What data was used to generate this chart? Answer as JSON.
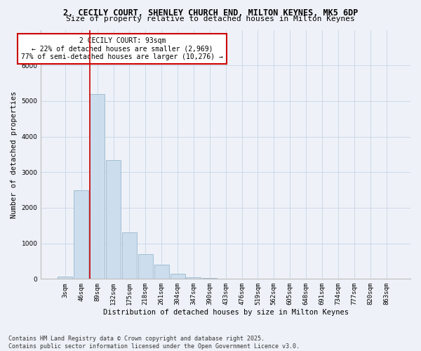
{
  "title_line1": "2, CECILY COURT, SHENLEY CHURCH END, MILTON KEYNES, MK5 6DP",
  "title_line2": "Size of property relative to detached houses in Milton Keynes",
  "xlabel": "Distribution of detached houses by size in Milton Keynes",
  "ylabel": "Number of detached properties",
  "categories": [
    "3sqm",
    "46sqm",
    "89sqm",
    "132sqm",
    "175sqm",
    "218sqm",
    "261sqm",
    "304sqm",
    "347sqm",
    "390sqm",
    "433sqm",
    "476sqm",
    "519sqm",
    "562sqm",
    "605sqm",
    "648sqm",
    "691sqm",
    "734sqm",
    "777sqm",
    "820sqm",
    "863sqm"
  ],
  "values": [
    75,
    2500,
    5200,
    3350,
    1300,
    700,
    400,
    150,
    50,
    20,
    5,
    2,
    1,
    0,
    0,
    0,
    0,
    0,
    0,
    0,
    0
  ],
  "bar_color": "#ccdded",
  "bar_edge_color": "#9ab8cc",
  "vline_color": "#cc0000",
  "annotation_text": "2 CECILY COURT: 93sqm\n← 22% of detached houses are smaller (2,969)\n77% of semi-detached houses are larger (10,276) →",
  "annotation_box_color": "#ffffff",
  "annotation_box_edge": "#cc0000",
  "ylim": [
    0,
    7000
  ],
  "yticks": [
    0,
    1000,
    2000,
    3000,
    4000,
    5000,
    6000
  ],
  "grid_color": "#ccd8e8",
  "background_color": "#eef2f8",
  "footnote": "Contains HM Land Registry data © Crown copyright and database right 2025.\nContains public sector information licensed under the Open Government Licence v3.0.",
  "title_fontsize": 8.5,
  "subtitle_fontsize": 8,
  "axis_label_fontsize": 7.5,
  "tick_fontsize": 6.5,
  "annotation_fontsize": 7,
  "footnote_fontsize": 6
}
